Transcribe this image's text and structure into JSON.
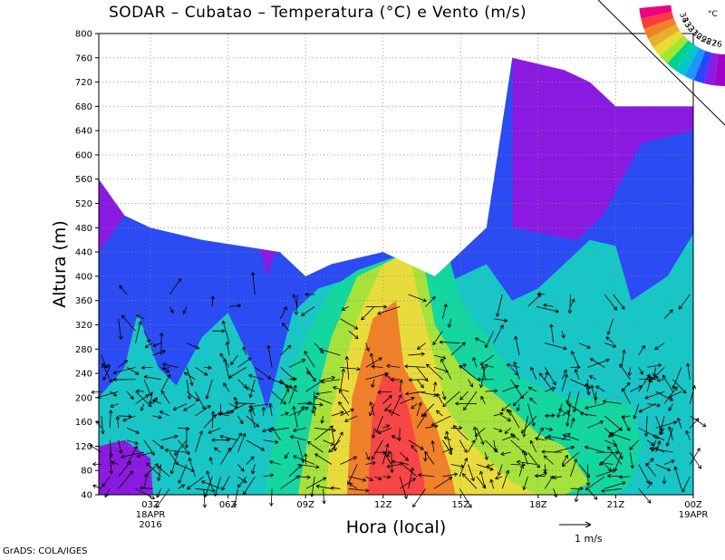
{
  "chart_data": {
    "type": "heatmap",
    "title": "SODAR – Cubatao – Temperatura (°C) e Vento (m/s)",
    "xlabel": "Hora (local)",
    "ylabel": "Altura (m)",
    "ylim": [
      40,
      800
    ],
    "yticks": [
      40,
      80,
      120,
      160,
      200,
      240,
      280,
      320,
      360,
      400,
      440,
      480,
      520,
      560,
      600,
      640,
      680,
      720,
      760,
      800
    ],
    "xticks": [
      {
        "hour": 3,
        "label": "03Z",
        "sub1": "18APR",
        "sub2": "2016"
      },
      {
        "hour": 6,
        "label": "06Z"
      },
      {
        "hour": 9,
        "label": "09Z"
      },
      {
        "hour": 12,
        "label": "12Z"
      },
      {
        "hour": 15,
        "label": "15Z"
      },
      {
        "hour": 18,
        "label": "18Z"
      },
      {
        "hour": 21,
        "label": "21Z"
      },
      {
        "hour": 24,
        "label": "00Z",
        "sub1": "19APR"
      }
    ],
    "xlim": [
      1,
      24
    ],
    "colorbar": {
      "levels": [
        26,
        27,
        28,
        29,
        30,
        31,
        32,
        33,
        34
      ],
      "unit": "°C",
      "colors": [
        "#a000c8",
        "#8c19e6",
        "#2846ff",
        "#1e96ff",
        "#00c8c8",
        "#00d28c",
        "#a0e632",
        "#e6dc32",
        "#e6af2d",
        "#f08228",
        "#fa3c3c",
        "#f00082"
      ]
    },
    "fill": {
      "colors": {
        "purple": "#8a1ae0",
        "blue": "#2a4cf2",
        "cyan": "#19c6c6",
        "teal": "#13d6a0",
        "green": "#a5e23c",
        "yellow": "#e8dc3c",
        "orange": "#f0802a",
        "red": "#f84646"
      },
      "top_height": [
        [
          1,
          560
        ],
        [
          2,
          500
        ],
        [
          3,
          480
        ],
        [
          5,
          460
        ],
        [
          8,
          440
        ],
        [
          9,
          400
        ],
        [
          10,
          420
        ],
        [
          12,
          440
        ],
        [
          14,
          400
        ],
        [
          16,
          480
        ],
        [
          17,
          760
        ],
        [
          19,
          740
        ],
        [
          20,
          720
        ],
        [
          21,
          680
        ],
        [
          22,
          680
        ],
        [
          24,
          680
        ]
      ]
    },
    "wind_reference": {
      "value": 1,
      "unit": "m/s",
      "label": "1  m/s"
    },
    "credit": "GrADS: COLA/IGES"
  }
}
